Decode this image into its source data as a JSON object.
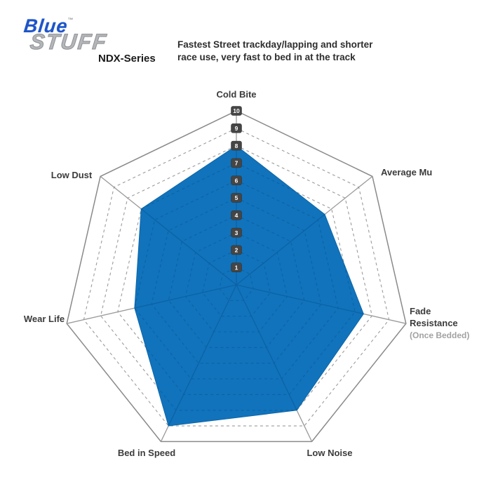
{
  "logo": {
    "word1": "Blue",
    "tm": "™",
    "word2": "STUFF",
    "series": "NDX-Series"
  },
  "header": {
    "description_line1": "Fastest Street trackday/lapping and shorter",
    "description_line2": "race use, very fast to bed in at the track"
  },
  "colors": {
    "fill": "#1173bb",
    "fill_stroke": "#0d67a9",
    "grid": "#9b9b9b",
    "grid_outer": "#8a8a8a",
    "grid_inner": "#0a5a9c",
    "tick_box": "#454545",
    "tick_text": "#ffffff",
    "label": "#3b3b3b",
    "sublabel": "#a2a2a2"
  },
  "chart_data": {
    "type": "radar",
    "categories": [
      {
        "label": "Cold Bite"
      },
      {
        "label": "Average Mu"
      },
      {
        "label": "Fade Resistance",
        "sublabel": "(Once Bedded)"
      },
      {
        "label": "Low Noise"
      },
      {
        "label": "Bed in Speed"
      },
      {
        "label": "Wear Life"
      },
      {
        "label": "Low Dust"
      }
    ],
    "values": [
      8,
      6.5,
      7.5,
      8,
      9,
      6,
      7
    ],
    "scale_ticks": [
      1,
      2,
      3,
      4,
      5,
      6,
      7,
      8,
      9,
      10
    ],
    "axis_min": 0,
    "axis_max": 10,
    "grid_style": "dashed concentric heptagons, solid outer ring",
    "legend": "none"
  }
}
